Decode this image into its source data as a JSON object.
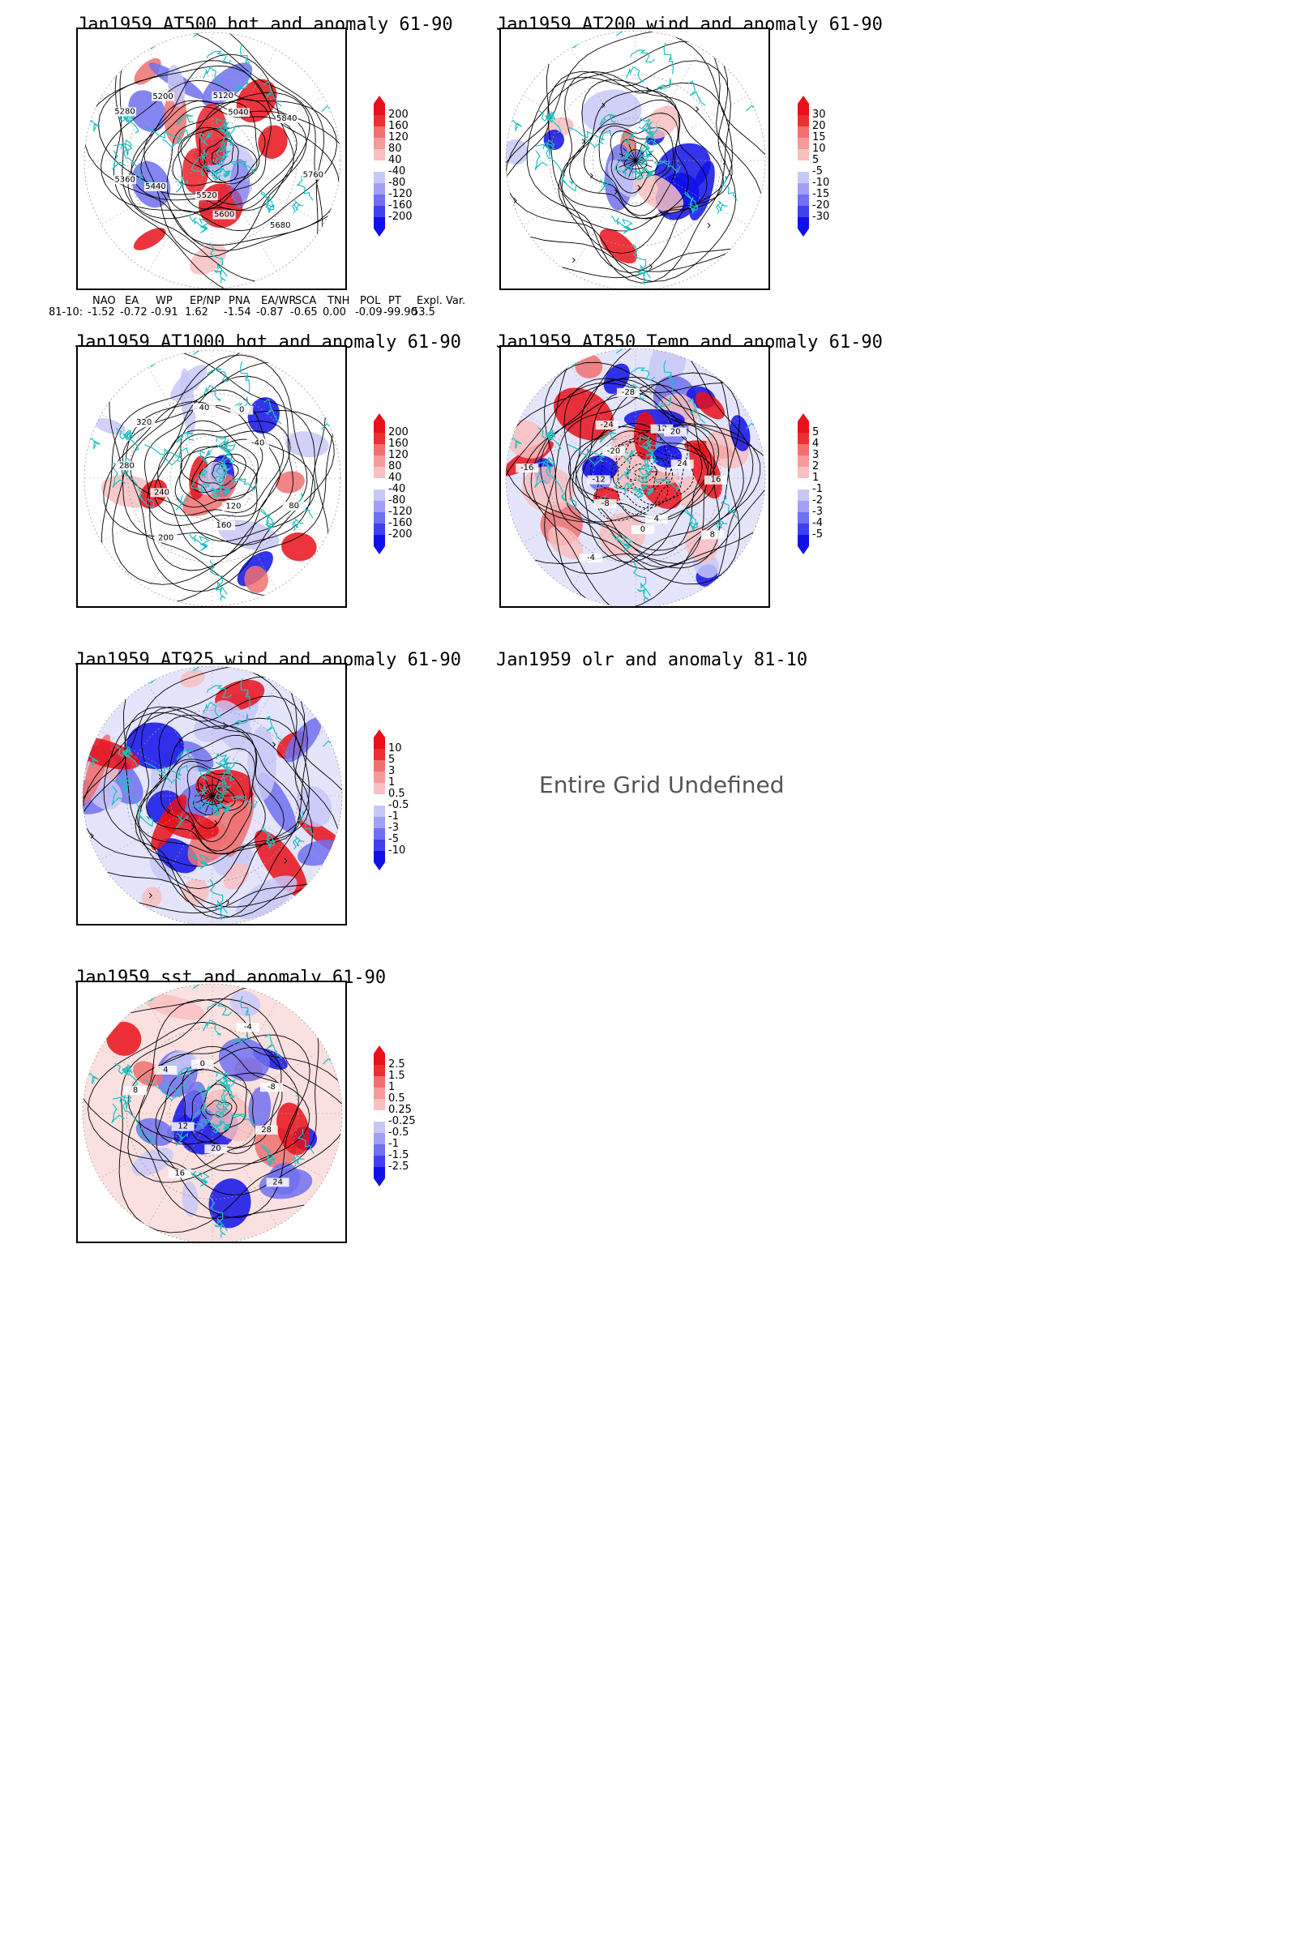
{
  "panels": [
    {
      "id": "p1",
      "title": "Jan1959 AT500 hgt and anomaly 61-90",
      "colorbar": [
        "200",
        "160",
        "120",
        "80",
        "40",
        "-40",
        "-80",
        "-120",
        "-160",
        "-200"
      ],
      "contour_labels": [
        "5760",
        "5680",
        "5600",
        "5520",
        "5440",
        "5360",
        "5280",
        "5200",
        "5120",
        "5040",
        "5840"
      ]
    },
    {
      "id": "p2",
      "title": "Jan1959 AT200 wind and anomaly 61-90",
      "colorbar": [
        "30",
        "20",
        "15",
        "10",
        "5",
        "-5",
        "-10",
        "-15",
        "-20",
        "-30"
      ],
      "contour_labels": []
    },
    {
      "id": "p3",
      "title": "Jan1959 AT1000 hgt and anomaly 61-90",
      "colorbar": [
        "200",
        "160",
        "120",
        "80",
        "40",
        "-40",
        "-80",
        "-120",
        "-160",
        "-200"
      ],
      "contour_labels": [
        "80",
        "120",
        "160",
        "200",
        "240",
        "280",
        "320",
        "40",
        "0",
        "-40"
      ]
    },
    {
      "id": "p4",
      "title": "Jan1959 AT850 Temp and anomaly 61-90",
      "colorbar": [
        "5",
        "4",
        "3",
        "2",
        "1",
        "-1",
        "-2",
        "-3",
        "-4",
        "-5"
      ],
      "contour_labels": [
        "16",
        "8",
        "4",
        "0",
        "-4",
        "-8",
        "-12",
        "-16",
        "-20",
        "-24",
        "-28",
        "12",
        "20",
        "24"
      ]
    },
    {
      "id": "p5",
      "title": "Jan1959 AT925 wind and anomaly 61-90",
      "colorbar": [
        "10",
        "5",
        "3",
        "1",
        "0.5",
        "-0.5",
        "-1",
        "-3",
        "-5",
        "-10"
      ],
      "contour_labels": []
    },
    {
      "id": "p6",
      "title": "Jan1959 olr and anomaly 81-10",
      "undefined_message": "Entire Grid Undefined"
    },
    {
      "id": "p7",
      "title": "Jan1959 sst and anomaly 61-90",
      "colorbar": [
        "2.5",
        "1.5",
        "1",
        "0.5",
        "0.25",
        "-0.25",
        "-0.5",
        "-1",
        "-1.5",
        "-2.5"
      ],
      "contour_labels": [
        "28",
        "24",
        "20",
        "16",
        "12",
        "8",
        "4",
        "0",
        "-4",
        "-8"
      ]
    }
  ],
  "index_table": {
    "headers": [
      "NAO",
      "EA",
      "WP",
      "EP/NP",
      "PNA",
      "EA/WR",
      "SCA",
      "TNH",
      "POL",
      "PT",
      "Expl. Var."
    ],
    "row_label": "81-10:",
    "values": [
      "-1.52",
      "-0.72",
      "-0.91",
      "1.62",
      "-1.54",
      "-0.87",
      "-0.65",
      "0.00",
      "-0.09",
      "-99.90",
      "53.5"
    ]
  },
  "colors": {
    "coast": "#20c0c0",
    "red_strong": "#e8101a",
    "red_mid": "#f07070",
    "red_light": "#f8c0c0",
    "blue_light": "#c8c8f8",
    "blue_mid": "#7070f0",
    "blue_strong": "#1010e8"
  }
}
